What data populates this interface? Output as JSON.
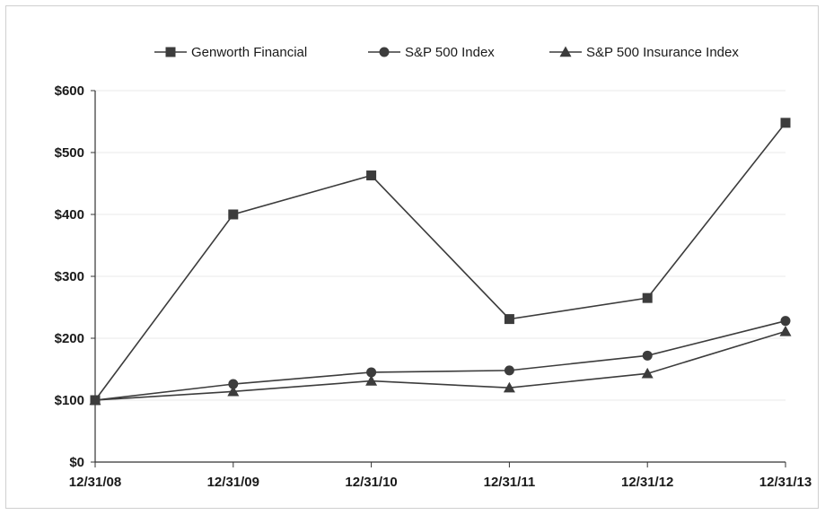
{
  "chart_data": {
    "type": "line",
    "title": "",
    "xlabel": "",
    "ylabel": "",
    "categories": [
      "12/31/08",
      "12/31/09",
      "12/31/10",
      "12/31/11",
      "12/31/12",
      "12/31/13"
    ],
    "y_ticks": [
      "$0",
      "$100",
      "$200",
      "$300",
      "$400",
      "$500",
      "$600"
    ],
    "ylim": [
      0,
      600
    ],
    "grid": true,
    "legend_position": "top",
    "series": [
      {
        "name": "Genworth Financial",
        "marker": "square",
        "values": [
          100,
          400,
          463,
          231,
          265,
          548
        ]
      },
      {
        "name": "S&P 500 Index",
        "marker": "circle",
        "values": [
          100,
          126,
          145,
          148,
          172,
          228
        ]
      },
      {
        "name": "S&P 500 Insurance Index",
        "marker": "triangle",
        "values": [
          100,
          114,
          131,
          120,
          143,
          211
        ]
      }
    ],
    "colors": {
      "line": "#3c3c3c",
      "marker": "#3c3c3c",
      "axis": "#333333",
      "grid": "#e8e8e8"
    }
  }
}
